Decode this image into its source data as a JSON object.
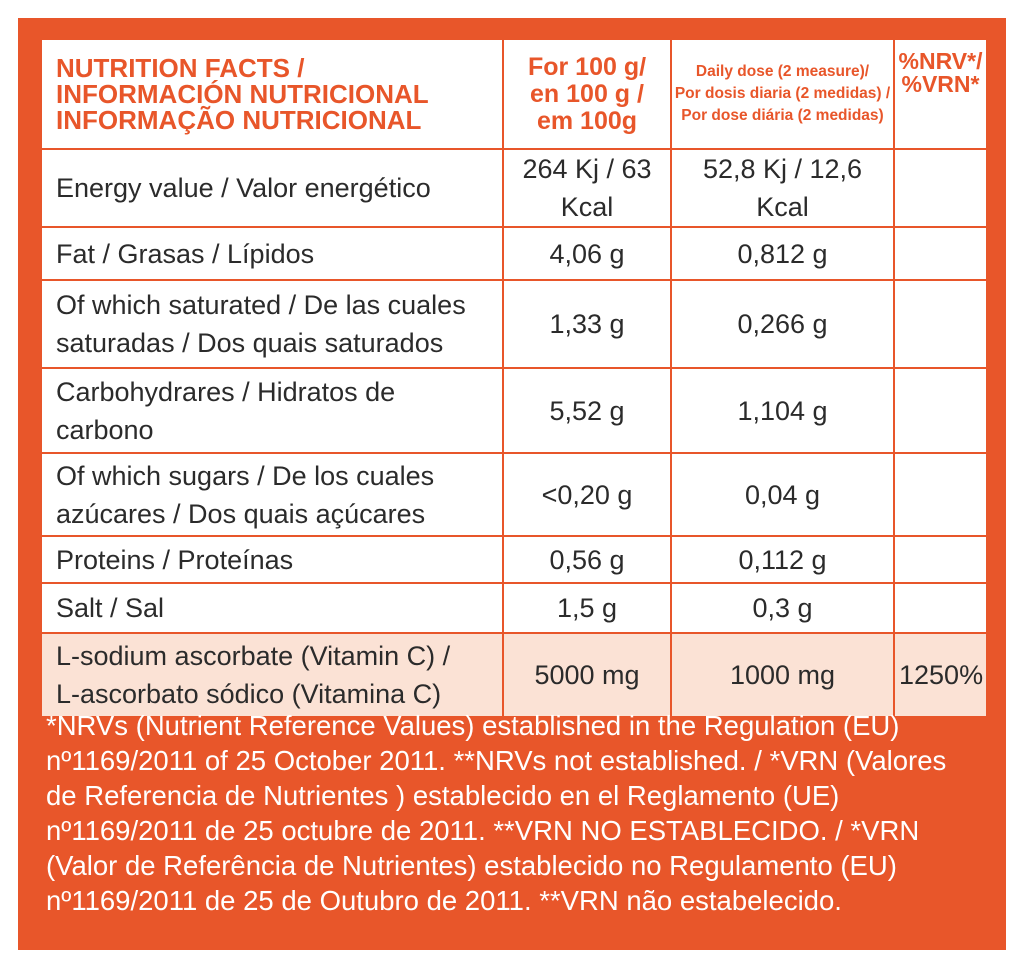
{
  "header": {
    "col1": [
      "NUTRITION FACTS /",
      "INFORMACIÓN NUTRICIONAL",
      "INFORMAÇÃO NUTRICIONAL"
    ],
    "col2": [
      "For 100 g/",
      "en 100 g /",
      "em 100g"
    ],
    "col3": [
      "Daily dose (2 measure)/",
      "Por dosis diaria (2 medidas) /",
      "Por dose diária (2 medidas)"
    ],
    "col4": [
      "%NRV*/",
      "%VRN*"
    ]
  },
  "rows": [
    {
      "label": [
        "Energy value / Valor energético"
      ],
      "per100": "264 Kj / 63 Kcal",
      "daily": "52,8 Kj / 12,6 Kcal",
      "nrv": ""
    },
    {
      "label": [
        "Fat / Grasas / Lípidos"
      ],
      "per100": "4,06 g",
      "daily": "0,812 g",
      "nrv": ""
    },
    {
      "label": [
        "Of which saturated / De las cuales",
        "saturadas / Dos quais saturados"
      ],
      "per100": "1,33 g",
      "daily": "0,266 g",
      "nrv": ""
    },
    {
      "label": [
        "Carbohydrares / Hidratos de",
        "carbono"
      ],
      "per100": "5,52 g",
      "daily": "1,104 g",
      "nrv": ""
    },
    {
      "label": [
        "Of which  sugars / De los cuales",
        "azúcares / Dos quais açúcares"
      ],
      "per100": "<0,20 g",
      "daily": "0,04 g",
      "nrv": ""
    },
    {
      "label": [
        "Proteins / Proteínas"
      ],
      "per100": "0,56 g",
      "daily": "0,112 g",
      "nrv": ""
    },
    {
      "label": [
        "Salt / Sal"
      ],
      "per100": "1,5  g",
      "daily": "0,3 g",
      "nrv": ""
    },
    {
      "label": [
        "L-sodium ascorbate (Vitamin C) /",
        "L-ascorbato sódico (Vitamina C)"
      ],
      "per100": "5000 mg",
      "daily": "1000 mg",
      "nrv": "1250%"
    }
  ],
  "footnote": [
    "*NRVs (Nutrient Reference Values) established in the Regulation (EU)",
    "nº1169/2011 of 25 October 2011. **NRVs not established. / *VRN (Valores",
    "de Referencia de Nutrientes ) establecido en el Reglamento (UE)",
    "nº1169/2011 de 25 octubre de 2011. **VRN NO ESTABLECIDO. / *VRN",
    "(Valor de Referência de Nutrientes) establecido no Regulamento (EU)",
    "nº1169/2011 de 25 de Outubro de 2011. **VRN não estabelecido."
  ],
  "colors": {
    "accent": "#e8562a",
    "highlight_row": "#fbe2d5",
    "text": "#2b2b2b"
  }
}
